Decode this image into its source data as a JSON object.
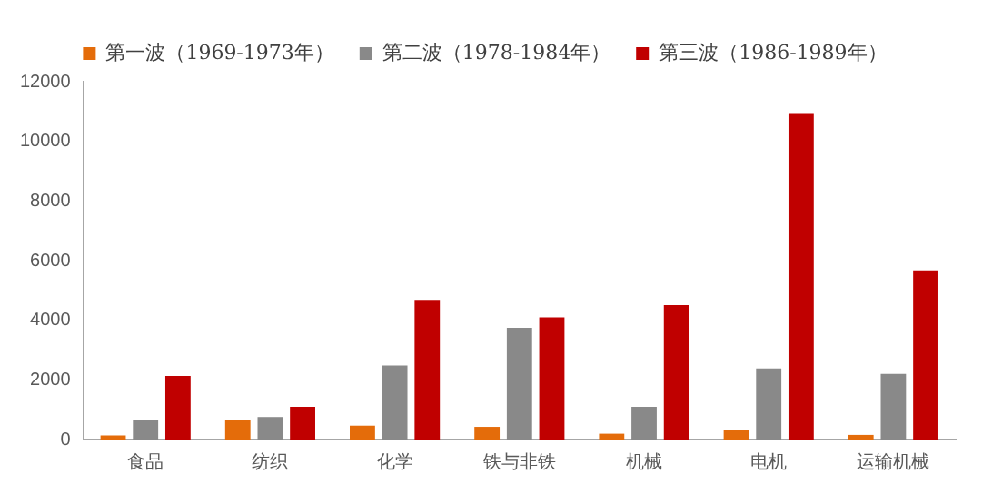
{
  "chart_data": {
    "type": "bar",
    "categories": [
      "食品",
      "纺织",
      "化学",
      "铁与非铁",
      "机械",
      "电机",
      "运输机械"
    ],
    "series": [
      {
        "name": "第一波（1969-1973年）",
        "color": "#e46c0a",
        "values": [
          135,
          640,
          465,
          425,
          195,
          310,
          155
        ]
      },
      {
        "name": "第二波（1978-1984年）",
        "color": "#898989",
        "values": [
          640,
          755,
          2480,
          3750,
          1100,
          2380,
          2200
        ]
      },
      {
        "name": "第三波（1986-1989年）",
        "color": "#c00000",
        "values": [
          2130,
          1100,
          4680,
          4100,
          4510,
          10950,
          5670
        ]
      }
    ],
    "ylim": [
      0,
      12000
    ],
    "yticks": [
      0,
      2000,
      4000,
      6000,
      8000,
      10000,
      12000
    ],
    "grid": false,
    "legend": "top"
  }
}
